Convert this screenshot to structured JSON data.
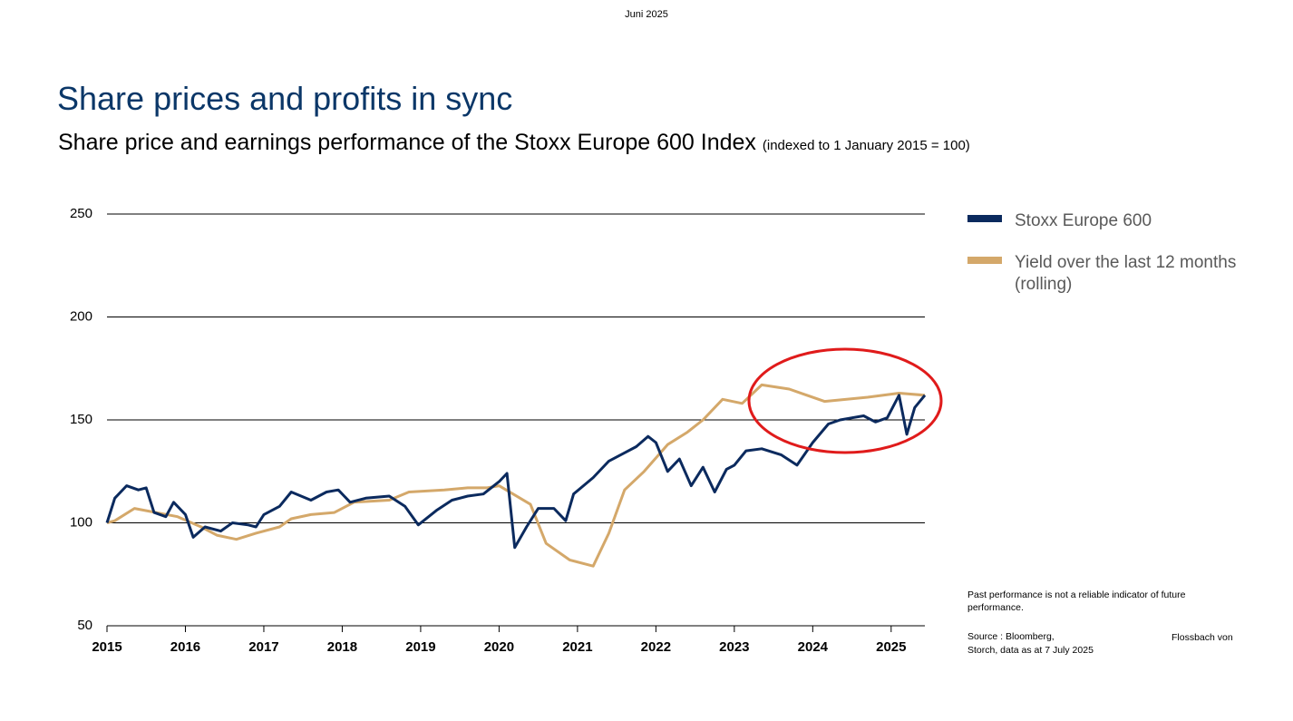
{
  "header": "Juni 2025",
  "chart_data": {
    "type": "line",
    "title": "Share prices and profits in sync",
    "subtitle": "Share price and earnings performance of the Stoxx Europe 600 Index",
    "subtitle_note": "(indexed to 1 January 2015 = 100)",
    "xlim": [
      2015,
      2025.43
    ],
    "xticks": [
      2015,
      2016,
      2017,
      2018,
      2019,
      2020,
      2021,
      2022,
      2023,
      2024,
      2025
    ],
    "ylim": [
      50,
      250
    ],
    "yticks": [
      50,
      100,
      150,
      200,
      250
    ],
    "grid": true,
    "legend": "right",
    "series": [
      {
        "name": "Stoxx Europe 600",
        "color": "#0b2a5e",
        "x": [
          2015.0,
          2015.1,
          2015.25,
          2015.4,
          2015.5,
          2015.6,
          2015.75,
          2015.85,
          2016.0,
          2016.1,
          2016.25,
          2016.45,
          2016.6,
          2016.8,
          2016.9,
          2017.0,
          2017.2,
          2017.35,
          2017.6,
          2017.8,
          2017.95,
          2018.1,
          2018.3,
          2018.6,
          2018.8,
          2018.97,
          2019.2,
          2019.4,
          2019.6,
          2019.8,
          2020.0,
          2020.1,
          2020.2,
          2020.35,
          2020.5,
          2020.7,
          2020.85,
          2020.95,
          2021.2,
          2021.4,
          2021.6,
          2021.75,
          2021.9,
          2022.0,
          2022.15,
          2022.3,
          2022.45,
          2022.6,
          2022.75,
          2022.9,
          2023.0,
          2023.15,
          2023.35,
          2023.6,
          2023.8,
          2024.0,
          2024.2,
          2024.35,
          2024.5,
          2024.65,
          2024.8,
          2024.95,
          2025.1,
          2025.2,
          2025.3,
          2025.43
        ],
        "values": [
          100,
          112,
          118,
          116,
          117,
          105,
          103,
          110,
          104,
          93,
          98,
          96,
          100,
          99,
          98,
          104,
          108,
          115,
          111,
          115,
          116,
          110,
          112,
          113,
          108,
          99,
          106,
          111,
          113,
          114,
          120,
          124,
          88,
          98,
          107,
          107,
          101,
          114,
          122,
          130,
          134,
          137,
          142,
          139,
          125,
          131,
          118,
          127,
          115,
          126,
          128,
          135,
          136,
          133,
          128,
          139,
          148,
          150,
          151,
          152,
          149,
          151,
          162,
          143,
          156,
          162
        ]
      },
      {
        "name": "Yield over the last 12 months (rolling)",
        "color": "#d4a86a",
        "x": [
          2015.0,
          2015.1,
          2015.35,
          2015.9,
          2016.2,
          2016.4,
          2016.65,
          2016.9,
          2017.2,
          2017.35,
          2017.6,
          2017.9,
          2018.15,
          2018.6,
          2018.85,
          2019.3,
          2019.6,
          2019.85,
          2020.0,
          2020.4,
          2020.6,
          2020.9,
          2021.2,
          2021.4,
          2021.6,
          2021.85,
          2022.15,
          2022.4,
          2022.6,
          2022.85,
          2023.1,
          2023.35,
          2023.7,
          2024.15,
          2024.7,
          2025.1,
          2025.43
        ],
        "values": [
          100,
          101,
          107,
          103,
          98,
          94,
          92,
          95,
          98,
          102,
          104,
          105,
          110,
          111,
          115,
          116,
          117,
          117,
          118,
          109,
          90,
          82,
          79,
          95,
          116,
          125,
          138,
          144,
          150,
          160,
          158,
          167,
          165,
          159,
          161,
          163,
          162
        ]
      }
    ]
  },
  "footnote": "Past performance is not a reliable indicator of future performance.",
  "source": "Source : Bloomberg,",
  "source_author": "Flossbach von Storch, data as at 7 July 2025"
}
